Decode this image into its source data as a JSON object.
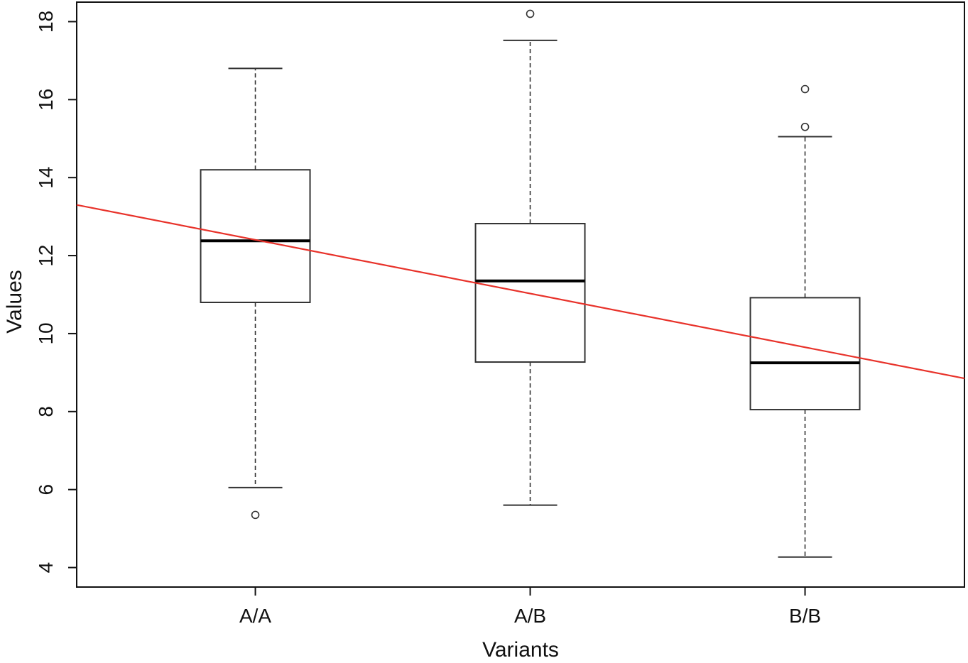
{
  "chart_data": {
    "type": "box",
    "title": "",
    "xlabel": "Variants",
    "ylabel": "Values",
    "ylim": [
      3.5,
      18.5
    ],
    "yticks": [
      4,
      6,
      8,
      10,
      12,
      14,
      16,
      18
    ],
    "categories": [
      "A/A",
      "A/B",
      "B/B"
    ],
    "boxes": [
      {
        "name": "A/A",
        "whisker_low": 6.05,
        "q1": 10.8,
        "median": 12.38,
        "q3": 14.2,
        "whisker_high": 16.8,
        "outliers": [
          5.35
        ]
      },
      {
        "name": "A/B",
        "whisker_low": 5.6,
        "q1": 9.27,
        "median": 11.35,
        "q3": 12.82,
        "whisker_high": 17.52,
        "outliers": [
          18.2
        ]
      },
      {
        "name": "B/B",
        "whisker_low": 4.27,
        "q1": 8.05,
        "median": 9.25,
        "q3": 10.92,
        "whisker_high": 15.05,
        "outliers": [
          15.3,
          16.27
        ]
      }
    ],
    "trend_line": {
      "color": "#e8322a",
      "points": [
        [
          0.35,
          13.3
        ],
        [
          3.58,
          8.85
        ]
      ]
    },
    "grid": false,
    "colors": {
      "axis": "#111111",
      "box": "#333333",
      "median": "#000000",
      "trend": "#e8322a"
    }
  }
}
